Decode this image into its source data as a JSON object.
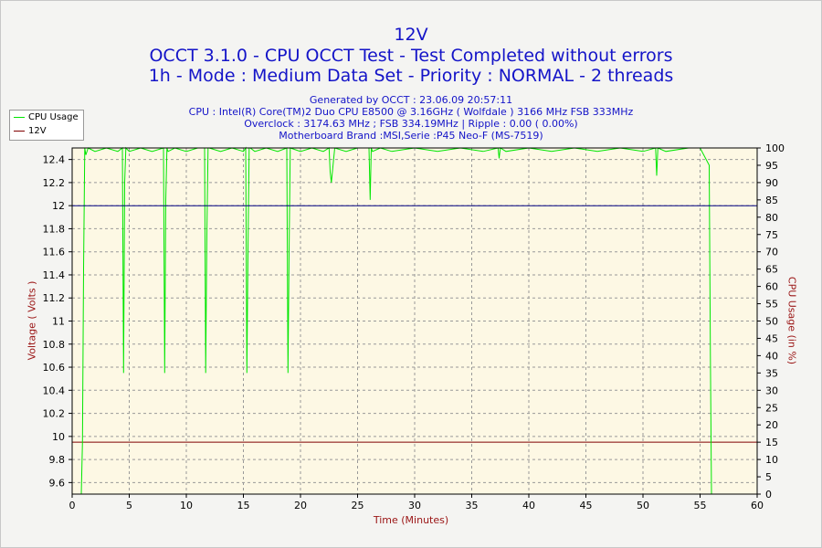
{
  "chart_data": {
    "type": "line",
    "title": "12V",
    "subtitle_lines": [
      "OCCT 3.1.0 - CPU OCCT Test - Test Completed without errors",
      "1h - Mode : Medium Data Set - Priority : NORMAL - 2 threads"
    ],
    "info_lines": [
      "Generated by OCCT : 23.06.09 20:57:11",
      "CPU : Intel(R) Core(TM)2 Duo CPU E8500 @ 3.16GHz ( Wolfdale ) 3166 MHz FSB 333MHz",
      "Overclock : 3174.63 MHz ; FSB 334.19MHz | Ripple : 0.00 ( 0.00%)",
      "Motherboard Brand :MSI,Serie :P45 Neo-F (MS-7519)"
    ],
    "xlabel": "Time (Minutes)",
    "ylabel_left": "Voltage ( Volts )",
    "ylabel_right": "CPU Usage (in %)",
    "xlim": [
      0,
      60
    ],
    "ylim_left": [
      9.5,
      12.5
    ],
    "ylim_right": [
      0,
      100
    ],
    "x_ticks": [
      "0",
      "5",
      "10",
      "15",
      "20",
      "25",
      "30",
      "35",
      "40",
      "45",
      "50",
      "55",
      "60"
    ],
    "y_ticks_left": [
      "12.4",
      "12.2",
      "12",
      "11.8",
      "11.6",
      "11.4",
      "11.2",
      "11",
      "10.8",
      "10.6",
      "10.4",
      "10.2",
      "10",
      "9.8",
      "9.6"
    ],
    "y_ticks_left_values": [
      12.4,
      12.2,
      12.0,
      11.8,
      11.6,
      11.4,
      11.2,
      11.0,
      10.8,
      10.6,
      10.4,
      10.2,
      10.0,
      9.8,
      9.6
    ],
    "y_ticks_right": [
      "100",
      "95",
      "90",
      "85",
      "80",
      "75",
      "70",
      "65",
      "60",
      "55",
      "50",
      "45",
      "40",
      "35",
      "30",
      "25",
      "20",
      "15",
      "10",
      "5",
      "0"
    ],
    "grid": true,
    "legend_position": "top-left",
    "series": [
      {
        "name": "CPU Usage",
        "axis": "right",
        "color": "#00e600",
        "x": [
          0.8,
          0.9,
          1.0,
          1.1,
          1.2,
          1.4,
          2,
          3,
          4,
          4.4,
          4.5,
          4.6,
          4.7,
          5,
          6,
          7,
          8,
          8.1,
          8.2,
          8.3,
          8.4,
          9,
          10,
          11,
          11.6,
          11.7,
          11.8,
          11.9,
          12.0,
          13,
          14,
          15,
          15.2,
          15.3,
          15.4,
          15.5,
          15.6,
          16,
          17,
          18,
          18.8,
          18.9,
          19.0,
          19.1,
          20,
          21,
          22,
          22.5,
          22.6,
          22.7,
          23,
          24,
          25,
          26,
          26.1,
          26.2,
          26.3,
          27,
          28,
          30,
          32,
          34,
          36,
          37.3,
          37.4,
          37.5,
          38,
          40,
          42,
          44,
          46,
          48,
          50,
          51.1,
          51.2,
          51.3,
          52,
          54,
          55,
          55.8,
          55.9,
          56.0,
          56.1,
          56.2
        ],
        "y": [
          0,
          15,
          65,
          100,
          98,
          100,
          99,
          100,
          99,
          100,
          35,
          90,
          100,
          99,
          100,
          99,
          100,
          35,
          85,
          100,
          99,
          100,
          99,
          100,
          100,
          35,
          75,
          100,
          100,
          99,
          100,
          99,
          100,
          35,
          70,
          100,
          100,
          99,
          100,
          99,
          100,
          35,
          70,
          100,
          99,
          100,
          99,
          100,
          93,
          90,
          100,
          99,
          100,
          100,
          85,
          100,
          99,
          100,
          99,
          100,
          99,
          100,
          99,
          100,
          97,
          100,
          99,
          100,
          99,
          100,
          99,
          100,
          99,
          100,
          92,
          100,
          99,
          100,
          100,
          95,
          40,
          0,
          0,
          0
        ],
        "values": [
          0,
          15,
          65,
          100,
          98,
          100,
          99,
          100,
          99,
          100,
          35,
          90,
          100,
          99,
          100,
          99,
          100,
          35,
          85,
          100,
          99,
          100,
          99,
          100,
          100,
          35,
          75,
          100,
          100,
          99,
          100,
          99,
          100,
          35,
          70,
          100,
          100,
          99,
          100,
          99,
          100,
          35,
          70,
          100,
          99,
          100,
          99,
          100,
          93,
          90,
          100,
          99,
          100,
          100,
          85,
          100,
          99,
          100,
          99,
          100,
          99,
          100,
          99,
          100,
          97,
          100,
          99,
          100,
          99,
          100,
          99,
          100,
          99,
          100,
          92,
          100,
          99,
          100,
          100,
          95,
          40,
          0,
          0,
          0
        ]
      },
      {
        "name": "12V",
        "axis": "left",
        "color": "#000080",
        "x": [
          0,
          60
        ],
        "y": [
          12.0,
          12.0
        ],
        "values": [
          12.0,
          12.0
        ]
      }
    ],
    "reference_lines": [
      {
        "axis": "right",
        "value": 15,
        "color": "#800000"
      }
    ]
  },
  "colors": {
    "title": "#1414c8",
    "axis_title": "#9a1414",
    "plot_background": "#fdf8e4",
    "grid": "#999999"
  }
}
